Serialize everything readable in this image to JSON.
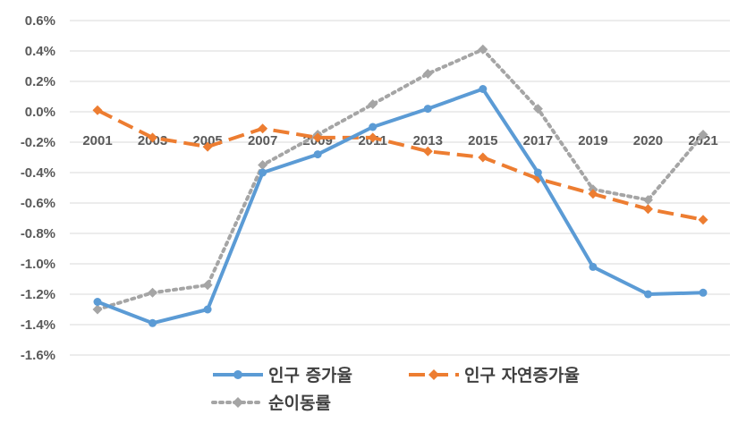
{
  "chart_data": {
    "type": "line",
    "categories": [
      "2001",
      "2003",
      "2005",
      "2007",
      "2009",
      "2011",
      "2013",
      "2015",
      "2017",
      "2019",
      "2020",
      "2021"
    ],
    "ylim": [
      -1.6,
      0.6
    ],
    "yticks": [
      "0.6%",
      "0.4%",
      "0.2%",
      "0.0%",
      "-0.2%",
      "-0.4%",
      "-0.6%",
      "-0.8%",
      "-1.0%",
      "-1.2%",
      "-1.4%",
      "-1.6%"
    ],
    "grid": true,
    "legend_position": "bottom",
    "series": [
      {
        "name": "인구 증가율",
        "color": "#5B9BD5",
        "style": "solid",
        "marker": "circle",
        "values": [
          -1.25,
          -1.39,
          -1.3,
          -0.4,
          -0.28,
          -0.1,
          0.02,
          0.15,
          -0.4,
          -1.02,
          -1.2,
          -1.19
        ]
      },
      {
        "name": "인구 자연증가율",
        "color": "#ED7D31",
        "style": "dash",
        "marker": "diamond",
        "values": [
          0.01,
          -0.17,
          -0.23,
          -0.11,
          -0.17,
          -0.17,
          -0.26,
          -0.3,
          -0.44,
          -0.54,
          -0.64,
          -0.71
        ]
      },
      {
        "name": "순이동률",
        "color": "#A5A5A5",
        "style": "dot",
        "marker": "diamond",
        "values": [
          -1.3,
          -1.19,
          -1.14,
          -0.35,
          -0.15,
          0.05,
          0.25,
          0.41,
          0.02,
          -0.51,
          -0.58,
          -0.15
        ]
      }
    ]
  }
}
